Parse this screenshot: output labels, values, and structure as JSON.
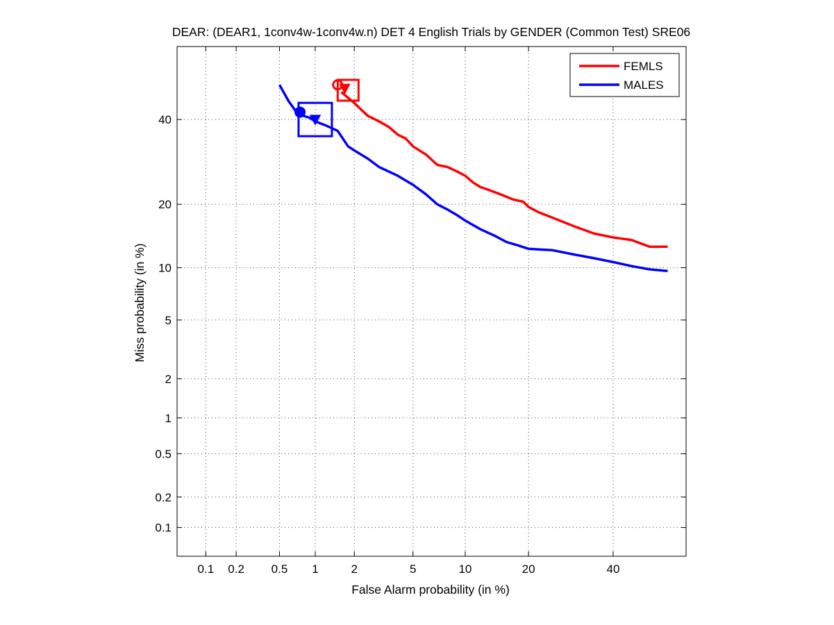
{
  "chart_data": {
    "type": "line",
    "title": "DEAR: (DEAR1, 1conv4w-1conv4w.n) DET 4 English Trials by GENDER (Common Test) SRE06",
    "xlabel": "False Alarm probability (in %)",
    "ylabel": "Miss probability (in %)",
    "scale": "normal-deviate (probit) on both axes",
    "xlim": [
      0.05,
      60
    ],
    "ylim": [
      0.05,
      60
    ],
    "x_ticks": [
      0.1,
      0.2,
      0.5,
      1,
      2,
      5,
      10,
      20,
      40
    ],
    "x_tick_labels": [
      "0.1",
      "0.2",
      "0.5",
      "1",
      "2",
      "5",
      "10",
      "20",
      "40"
    ],
    "y_ticks": [
      0.1,
      0.2,
      0.5,
      1,
      2,
      5,
      10,
      20,
      40
    ],
    "y_tick_labels": [
      "0.1",
      "0.2",
      "0.5",
      "1",
      "2",
      "5",
      "10",
      "20",
      "40"
    ],
    "grid": true,
    "legend_position": "top-right",
    "series": [
      {
        "name": "FEMLS",
        "color": "#ff0000",
        "x": [
          1.6,
          2.0,
          2.5,
          3.0,
          3.5,
          4.0,
          4.5,
          5.0,
          6.0,
          7.0,
          8.0,
          9.0,
          10.0,
          11.0,
          12.0,
          13.0,
          15.0,
          17.0,
          19.0,
          20.0,
          22.0,
          25.0,
          30.0,
          35.0,
          40.0,
          45.0,
          50.0,
          55.0
        ],
        "y": [
          47.5,
          44.5,
          41.0,
          39.5,
          38.0,
          36.0,
          35.0,
          33.0,
          31.0,
          28.5,
          28.0,
          27.0,
          26.0,
          24.5,
          23.5,
          23.0,
          22.0,
          21.0,
          20.5,
          19.5,
          18.5,
          17.5,
          16.0,
          14.8,
          14.2,
          13.8,
          12.8,
          12.8
        ],
        "markers": {
          "circle": {
            "x": 1.5,
            "y": 49.5
          },
          "triangle": {
            "x": 1.7,
            "y": 48.5
          },
          "square": {
            "x": 1.8,
            "y": 48.0
          }
        }
      },
      {
        "name": "MALES",
        "color": "#0000ff",
        "x": [
          0.5,
          0.6,
          0.7,
          0.8,
          0.9,
          1.0,
          1.2,
          1.5,
          1.8,
          2.0,
          2.5,
          3.0,
          4.0,
          5.0,
          6.0,
          7.0,
          8.0,
          9.0,
          10.0,
          12.0,
          14.0,
          16.0,
          18.0,
          20.0,
          25.0,
          30.0,
          35.0,
          40.0,
          45.0,
          50.0,
          55.0
        ],
        "y": [
          49.5,
          45.0,
          42.0,
          41.0,
          40.5,
          39.5,
          38.5,
          37.0,
          33.0,
          32.0,
          30.0,
          28.0,
          26.0,
          24.0,
          22.0,
          20.0,
          19.0,
          18.0,
          17.0,
          15.5,
          14.5,
          13.5,
          13.0,
          12.5,
          12.3,
          11.7,
          11.2,
          10.7,
          10.2,
          9.8,
          9.6
        ],
        "markers": {
          "circle": {
            "x": 0.75,
            "y": 42.0
          },
          "triangle": {
            "x": 1.0,
            "y": 40.0
          },
          "square": {
            "x": 1.0,
            "y": 40.0
          }
        }
      }
    ]
  }
}
